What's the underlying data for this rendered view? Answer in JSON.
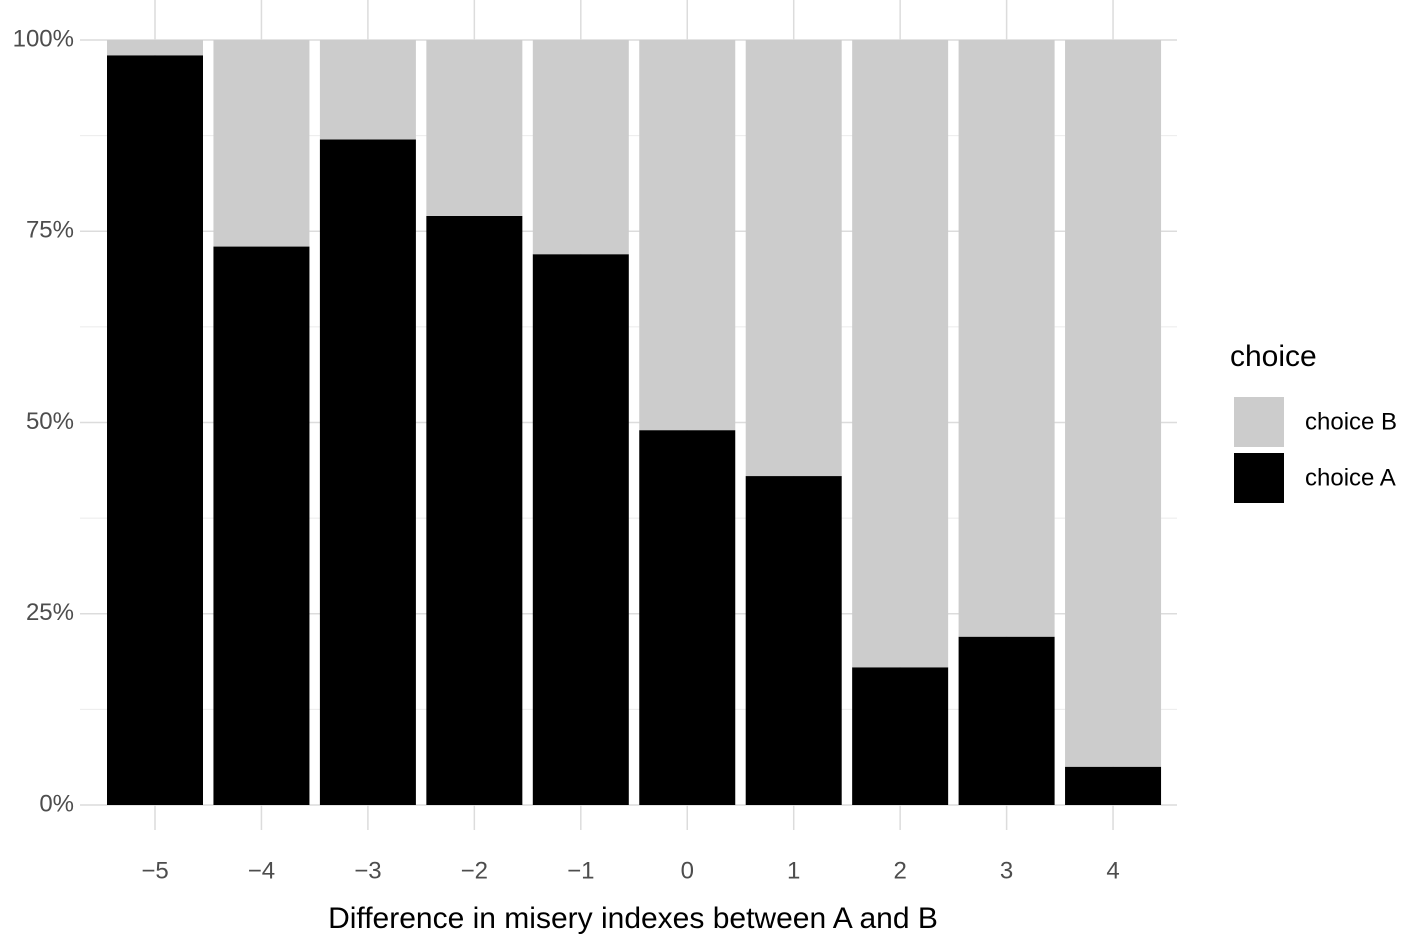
{
  "chart_data": {
    "type": "stacked-bar",
    "x_label": "Difference in misery indexes between A and B",
    "categories": [
      "−5",
      "−4",
      "−3",
      "−2",
      "−1",
      "0",
      "1",
      "2",
      "3",
      "4"
    ],
    "series": [
      {
        "name": "choice A",
        "color": "#000000",
        "values": [
          98,
          73,
          87,
          77,
          72,
          49,
          43,
          18,
          22,
          5
        ]
      },
      {
        "name": "choice B",
        "color": "#cccccc",
        "values": [
          2,
          27,
          13,
          23,
          28,
          51,
          57,
          82,
          78,
          95
        ]
      }
    ],
    "legend_title": "choice",
    "ylim": [
      0,
      100
    ],
    "yticks": [
      {
        "value": 0,
        "label": "0%"
      },
      {
        "value": 25,
        "label": "25%"
      },
      {
        "value": 50,
        "label": "50%"
      },
      {
        "value": 75,
        "label": "75%"
      },
      {
        "value": 100,
        "label": "100%"
      }
    ],
    "grid": true,
    "legend": "right"
  }
}
